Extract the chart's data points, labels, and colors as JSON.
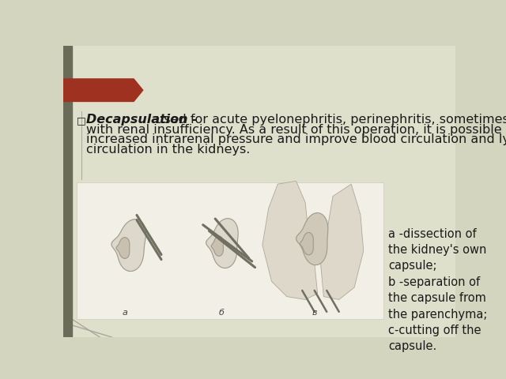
{
  "slide_bg": "#d4d5be",
  "content_bg": "#dfe0cc",
  "left_bar_color": "#6b6b5a",
  "arrow_color": "#9e3120",
  "text_color": "#1a1a1a",
  "white_panel_color": "#f2f0e6",
  "bullet_char": "□",
  "title_bold": "Decapsulation -",
  "line1_rest": " used for acute pyelonephritis, perinephritis, sometimes",
  "line2": "with renal insufficiency. As a result of this operation, it is possible to reduce",
  "line3": "increased intrarenal pressure and improve blood circulation and lymph",
  "line4": "circulation in the kidneys.",
  "caption_text": "a -dissection of\nthe kidney's own\ncapsule;\nb -separation of\nthe capsule from\nthe parenchyma;\nc-cutting off the\ncapsule.",
  "body_fontsize": 11.5,
  "caption_fontsize": 10.5,
  "title_fontsize": 11.5,
  "kidney_color": "#c8c0b0",
  "kidney_dark": "#a09888",
  "kidney_light": "#ddd8cc",
  "instrument_color": "#707060"
}
